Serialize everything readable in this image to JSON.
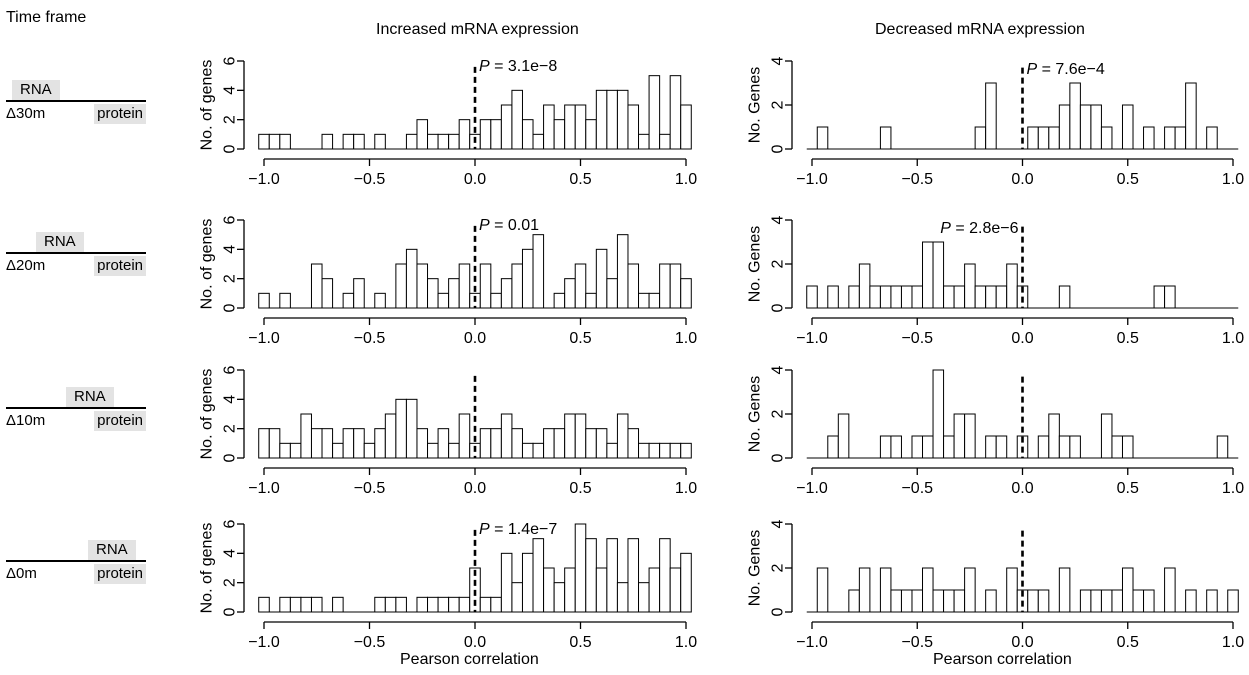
{
  "figure": {
    "time_frame_label": "Time frame",
    "col_headers": [
      "Increased mRNA expression",
      "Decreased mRNA expression"
    ],
    "x_axis_label": "Pearson correlation",
    "row_labels": [
      {
        "rna": "RNA",
        "delta": "Δ30m",
        "protein": "protein"
      },
      {
        "rna": "RNA",
        "delta": "Δ20m",
        "protein": "protein"
      },
      {
        "rna": "RNA",
        "delta": "Δ10m",
        "protein": "protein"
      },
      {
        "rna": "RNA",
        "delta": "Δ0m",
        "protein": "protein"
      }
    ],
    "colors": {
      "bar_fill": "#ffffff",
      "bar_stroke": "#000000",
      "label_box": "#e3e3e3"
    }
  },
  "chart_data": [
    {
      "type": "bar",
      "row": "Δ30m",
      "column": "Increased mRNA expression",
      "ylabel": "No. of genes",
      "xlim": [
        -1,
        1
      ],
      "ylim": [
        0,
        6
      ],
      "yticks": [
        0,
        2,
        4,
        6
      ],
      "xticks": [
        "−1.0",
        "−0.5",
        "0.0",
        "0.5",
        "1.0"
      ],
      "p_label": "P",
      "p_value": "= 3.1e−8",
      "reference_line_x": 0,
      "bins": [
        [
          -1.0,
          1
        ],
        [
          -0.95,
          1
        ],
        [
          -0.9,
          1
        ],
        [
          -0.7,
          1
        ],
        [
          -0.6,
          1
        ],
        [
          -0.55,
          1
        ],
        [
          -0.45,
          1
        ],
        [
          -0.3,
          1
        ],
        [
          -0.25,
          2
        ],
        [
          -0.2,
          1
        ],
        [
          -0.15,
          1
        ],
        [
          -0.1,
          1
        ],
        [
          -0.05,
          2
        ],
        [
          0.0,
          1
        ],
        [
          0.05,
          2
        ],
        [
          0.1,
          2
        ],
        [
          0.15,
          3
        ],
        [
          0.2,
          4
        ],
        [
          0.25,
          2
        ],
        [
          0.3,
          1
        ],
        [
          0.35,
          3
        ],
        [
          0.4,
          2
        ],
        [
          0.45,
          3
        ],
        [
          0.5,
          3
        ],
        [
          0.55,
          2
        ],
        [
          0.6,
          4
        ],
        [
          0.65,
          4
        ],
        [
          0.7,
          4
        ],
        [
          0.75,
          3
        ],
        [
          0.8,
          1
        ],
        [
          0.85,
          5
        ],
        [
          0.9,
          1
        ],
        [
          0.95,
          5
        ],
        [
          1.0,
          3
        ]
      ]
    },
    {
      "type": "bar",
      "row": "Δ30m",
      "column": "Decreased mRNA expression",
      "ylabel": "No. Genes",
      "xlim": [
        -1,
        1
      ],
      "ylim": [
        0,
        4
      ],
      "yticks": [
        0,
        2,
        4
      ],
      "xticks": [
        "−1.0",
        "−0.5",
        "0.0",
        "0.5",
        "1.0"
      ],
      "p_label": "P",
      "p_value": "= 7.6e−4",
      "reference_line_x": 0,
      "bins": [
        [
          -0.95,
          1
        ],
        [
          -0.65,
          1
        ],
        [
          -0.2,
          1
        ],
        [
          -0.15,
          3
        ],
        [
          0.05,
          1
        ],
        [
          0.1,
          1
        ],
        [
          0.15,
          1
        ],
        [
          0.2,
          2
        ],
        [
          0.25,
          3
        ],
        [
          0.3,
          2
        ],
        [
          0.35,
          2
        ],
        [
          0.4,
          1
        ],
        [
          0.5,
          2
        ],
        [
          0.6,
          1
        ],
        [
          0.7,
          1
        ],
        [
          0.75,
          1
        ],
        [
          0.8,
          3
        ],
        [
          0.9,
          1
        ]
      ]
    },
    {
      "type": "bar",
      "row": "Δ20m",
      "column": "Increased mRNA expression",
      "ylabel": "No. of genes",
      "xlim": [
        -1,
        1
      ],
      "ylim": [
        0,
        6
      ],
      "yticks": [
        0,
        2,
        4,
        6
      ],
      "xticks": [
        "−1.0",
        "−0.5",
        "0.0",
        "0.5",
        "1.0"
      ],
      "p_label": "P",
      "p_value": "= 0.01",
      "reference_line_x": 0,
      "bins": [
        [
          -1.0,
          1
        ],
        [
          -0.9,
          1
        ],
        [
          -0.75,
          3
        ],
        [
          -0.7,
          2
        ],
        [
          -0.6,
          1
        ],
        [
          -0.55,
          2
        ],
        [
          -0.45,
          1
        ],
        [
          -0.35,
          3
        ],
        [
          -0.3,
          4
        ],
        [
          -0.25,
          3
        ],
        [
          -0.2,
          2
        ],
        [
          -0.15,
          1
        ],
        [
          -0.1,
          2
        ],
        [
          -0.05,
          3
        ],
        [
          0.0,
          1
        ],
        [
          0.05,
          3
        ],
        [
          0.1,
          1
        ],
        [
          0.15,
          2
        ],
        [
          0.2,
          3
        ],
        [
          0.25,
          4
        ],
        [
          0.3,
          5
        ],
        [
          0.4,
          1
        ],
        [
          0.45,
          2
        ],
        [
          0.5,
          3
        ],
        [
          0.55,
          1
        ],
        [
          0.6,
          4
        ],
        [
          0.65,
          2
        ],
        [
          0.7,
          5
        ],
        [
          0.75,
          3
        ],
        [
          0.8,
          1
        ],
        [
          0.85,
          1
        ],
        [
          0.9,
          3
        ],
        [
          0.95,
          3
        ],
        [
          1.0,
          2
        ]
      ]
    },
    {
      "type": "bar",
      "row": "Δ20m",
      "column": "Decreased mRNA expression",
      "ylabel": "No. Genes",
      "xlim": [
        -1,
        1
      ],
      "ylim": [
        0,
        4
      ],
      "yticks": [
        0,
        2,
        4
      ],
      "xticks": [
        "−1.0",
        "−0.5",
        "0.0",
        "0.5",
        "1.0"
      ],
      "p_label": "P",
      "p_value": "= 2.8e−6",
      "reference_line_x": 0,
      "bins": [
        [
          -1.0,
          1
        ],
        [
          -0.9,
          1
        ],
        [
          -0.8,
          1
        ],
        [
          -0.75,
          2
        ],
        [
          -0.7,
          1
        ],
        [
          -0.65,
          1
        ],
        [
          -0.6,
          1
        ],
        [
          -0.55,
          1
        ],
        [
          -0.5,
          1
        ],
        [
          -0.45,
          3
        ],
        [
          -0.4,
          3
        ],
        [
          -0.35,
          1
        ],
        [
          -0.3,
          1
        ],
        [
          -0.25,
          2
        ],
        [
          -0.2,
          1
        ],
        [
          -0.15,
          1
        ],
        [
          -0.1,
          1
        ],
        [
          -0.05,
          2
        ],
        [
          0.0,
          1
        ],
        [
          0.2,
          1
        ],
        [
          0.65,
          1
        ],
        [
          0.7,
          1
        ]
      ]
    },
    {
      "type": "bar",
      "row": "Δ10m",
      "column": "Increased mRNA expression",
      "ylabel": "No. of genes",
      "xlim": [
        -1,
        1
      ],
      "ylim": [
        0,
        6
      ],
      "yticks": [
        0,
        2,
        4,
        6
      ],
      "xticks": [
        "−1.0",
        "−0.5",
        "0.0",
        "0.5",
        "1.0"
      ],
      "p_label": "",
      "p_value": "",
      "reference_line_x": 0,
      "bins": [
        [
          -1.0,
          2
        ],
        [
          -0.95,
          2
        ],
        [
          -0.9,
          1
        ],
        [
          -0.85,
          1
        ],
        [
          -0.8,
          3
        ],
        [
          -0.75,
          2
        ],
        [
          -0.7,
          2
        ],
        [
          -0.65,
          1
        ],
        [
          -0.6,
          2
        ],
        [
          -0.55,
          2
        ],
        [
          -0.5,
          1
        ],
        [
          -0.45,
          2
        ],
        [
          -0.4,
          3
        ],
        [
          -0.35,
          4
        ],
        [
          -0.3,
          4
        ],
        [
          -0.25,
          2
        ],
        [
          -0.2,
          1
        ],
        [
          -0.15,
          2
        ],
        [
          -0.1,
          1
        ],
        [
          -0.05,
          3
        ],
        [
          0.0,
          1
        ],
        [
          0.05,
          2
        ],
        [
          0.1,
          2
        ],
        [
          0.15,
          3
        ],
        [
          0.2,
          2
        ],
        [
          0.25,
          1
        ],
        [
          0.3,
          1
        ],
        [
          0.35,
          2
        ],
        [
          0.4,
          2
        ],
        [
          0.45,
          3
        ],
        [
          0.5,
          3
        ],
        [
          0.55,
          2
        ],
        [
          0.6,
          2
        ],
        [
          0.65,
          1
        ],
        [
          0.7,
          3
        ],
        [
          0.75,
          2
        ],
        [
          0.8,
          1
        ],
        [
          0.85,
          1
        ],
        [
          0.9,
          1
        ],
        [
          0.95,
          1
        ],
        [
          1.0,
          1
        ]
      ]
    },
    {
      "type": "bar",
      "row": "Δ10m",
      "column": "Decreased mRNA expression",
      "ylabel": "No. Genes",
      "xlim": [
        -1,
        1
      ],
      "ylim": [
        0,
        4
      ],
      "yticks": [
        0,
        2,
        4
      ],
      "xticks": [
        "−1.0",
        "−0.5",
        "0.0",
        "0.5",
        "1.0"
      ],
      "p_label": "",
      "p_value": "",
      "reference_line_x": 0,
      "bins": [
        [
          -0.9,
          1
        ],
        [
          -0.85,
          2
        ],
        [
          -0.65,
          1
        ],
        [
          -0.6,
          1
        ],
        [
          -0.5,
          1
        ],
        [
          -0.45,
          1
        ],
        [
          -0.4,
          4
        ],
        [
          -0.35,
          1
        ],
        [
          -0.3,
          2
        ],
        [
          -0.25,
          2
        ],
        [
          -0.15,
          1
        ],
        [
          -0.1,
          1
        ],
        [
          0.0,
          1
        ],
        [
          0.1,
          1
        ],
        [
          0.15,
          2
        ],
        [
          0.2,
          1
        ],
        [
          0.25,
          1
        ],
        [
          0.4,
          2
        ],
        [
          0.45,
          1
        ],
        [
          0.5,
          1
        ],
        [
          0.95,
          1
        ]
      ]
    },
    {
      "type": "bar",
      "row": "Δ0m",
      "column": "Increased mRNA expression",
      "ylabel": "No. of genes",
      "xlim": [
        -1,
        1
      ],
      "ylim": [
        0,
        6
      ],
      "yticks": [
        0,
        2,
        4,
        6
      ],
      "xticks": [
        "−1.0",
        "−0.5",
        "0.0",
        "0.5",
        "1.0"
      ],
      "p_label": "P",
      "p_value": "= 1.4e−7",
      "reference_line_x": 0,
      "bins": [
        [
          -1.0,
          1
        ],
        [
          -0.9,
          1
        ],
        [
          -0.85,
          1
        ],
        [
          -0.8,
          1
        ],
        [
          -0.75,
          1
        ],
        [
          -0.65,
          1
        ],
        [
          -0.45,
          1
        ],
        [
          -0.4,
          1
        ],
        [
          -0.35,
          1
        ],
        [
          -0.25,
          1
        ],
        [
          -0.2,
          1
        ],
        [
          -0.15,
          1
        ],
        [
          -0.1,
          1
        ],
        [
          -0.05,
          1
        ],
        [
          0.0,
          3
        ],
        [
          0.05,
          1
        ],
        [
          0.1,
          1
        ],
        [
          0.15,
          4
        ],
        [
          0.2,
          2
        ],
        [
          0.25,
          4
        ],
        [
          0.3,
          5
        ],
        [
          0.35,
          3
        ],
        [
          0.4,
          2
        ],
        [
          0.45,
          3
        ],
        [
          0.5,
          6
        ],
        [
          0.55,
          5
        ],
        [
          0.6,
          3
        ],
        [
          0.65,
          5
        ],
        [
          0.7,
          2
        ],
        [
          0.75,
          5
        ],
        [
          0.8,
          2
        ],
        [
          0.85,
          3
        ],
        [
          0.9,
          5
        ],
        [
          0.95,
          3
        ],
        [
          1.0,
          4
        ]
      ]
    },
    {
      "type": "bar",
      "row": "Δ0m",
      "column": "Decreased mRNA expression",
      "ylabel": "No. Genes",
      "xlim": [
        -1,
        1
      ],
      "ylim": [
        0,
        4
      ],
      "yticks": [
        0,
        2,
        4
      ],
      "xticks": [
        "−1.0",
        "−0.5",
        "0.0",
        "0.5",
        "1.0"
      ],
      "p_label": "",
      "p_value": "",
      "reference_line_x": 0,
      "bins": [
        [
          -0.95,
          2
        ],
        [
          -0.8,
          1
        ],
        [
          -0.75,
          2
        ],
        [
          -0.65,
          2
        ],
        [
          -0.6,
          1
        ],
        [
          -0.55,
          1
        ],
        [
          -0.5,
          1
        ],
        [
          -0.45,
          2
        ],
        [
          -0.4,
          1
        ],
        [
          -0.35,
          1
        ],
        [
          -0.3,
          1
        ],
        [
          -0.25,
          2
        ],
        [
          -0.15,
          1
        ],
        [
          -0.05,
          2
        ],
        [
          0.0,
          1
        ],
        [
          0.05,
          1
        ],
        [
          0.1,
          1
        ],
        [
          0.2,
          2
        ],
        [
          0.3,
          1
        ],
        [
          0.35,
          1
        ],
        [
          0.4,
          1
        ],
        [
          0.45,
          1
        ],
        [
          0.5,
          2
        ],
        [
          0.55,
          1
        ],
        [
          0.6,
          1
        ],
        [
          0.7,
          2
        ],
        [
          0.8,
          1
        ],
        [
          0.9,
          1
        ],
        [
          1.0,
          1
        ]
      ]
    }
  ]
}
